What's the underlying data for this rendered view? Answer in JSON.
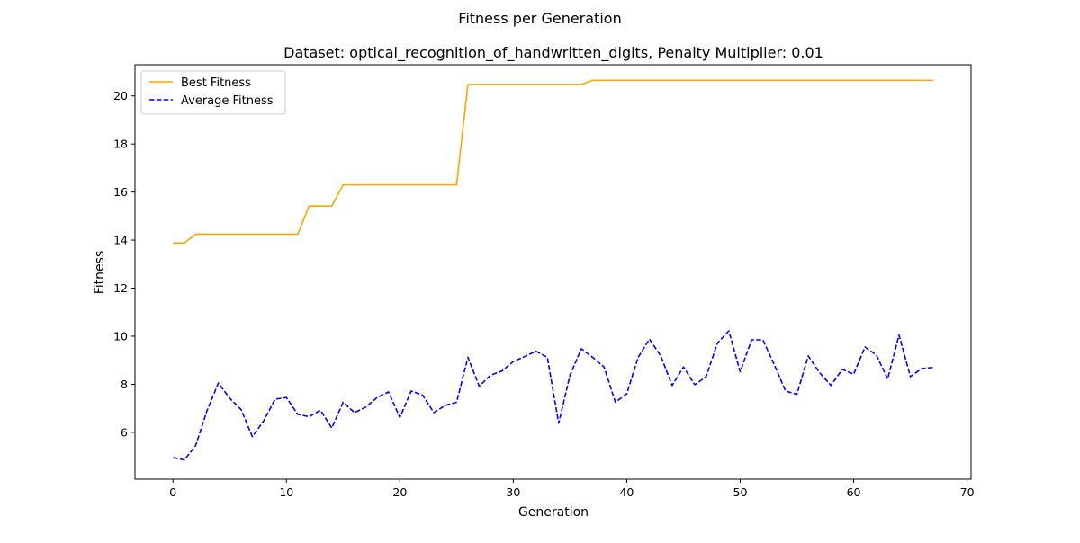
{
  "chart_data": {
    "type": "line",
    "suptitle": "Fitness per Generation",
    "title": "Dataset: optical_recognition_of_handwritten_digits, Penalty Multiplier: 0.01",
    "xlabel": "Generation",
    "ylabel": "Fitness",
    "xlim": [
      -3.35,
      70.35
    ],
    "ylim": [
      4.05,
      21.3
    ],
    "xticks": [
      0,
      10,
      20,
      30,
      40,
      50,
      60,
      70
    ],
    "yticks": [
      6,
      8,
      10,
      12,
      14,
      16,
      18,
      20
    ],
    "grid": false,
    "legend_position": "top-left",
    "series": [
      {
        "name": "Best Fitness",
        "color": "#ffa500",
        "style": "solid",
        "x": [
          0,
          1,
          2,
          3,
          4,
          5,
          6,
          7,
          8,
          9,
          10,
          11,
          12,
          13,
          14,
          15,
          16,
          17,
          18,
          19,
          20,
          21,
          22,
          23,
          24,
          25,
          26,
          27,
          28,
          29,
          30,
          31,
          32,
          33,
          34,
          35,
          36,
          37,
          38,
          39,
          40,
          41,
          42,
          43,
          44,
          45,
          46,
          47,
          48,
          49,
          50,
          51,
          52,
          53,
          54,
          55,
          56,
          57,
          58,
          59,
          60,
          61,
          62,
          63,
          64,
          65,
          66,
          67
        ],
        "y": [
          13.88,
          13.88,
          14.25,
          14.25,
          14.25,
          14.25,
          14.25,
          14.25,
          14.25,
          14.25,
          14.25,
          14.25,
          15.42,
          15.42,
          15.42,
          16.3,
          16.3,
          16.3,
          16.3,
          16.3,
          16.3,
          16.3,
          16.3,
          16.3,
          16.3,
          16.3,
          20.48,
          20.48,
          20.48,
          20.48,
          20.48,
          20.48,
          20.48,
          20.48,
          20.48,
          20.48,
          20.48,
          20.65,
          20.65,
          20.65,
          20.65,
          20.65,
          20.65,
          20.65,
          20.65,
          20.65,
          20.65,
          20.65,
          20.65,
          20.65,
          20.65,
          20.65,
          20.65,
          20.65,
          20.65,
          20.65,
          20.65,
          20.65,
          20.65,
          20.65,
          20.65,
          20.65,
          20.65,
          20.65,
          20.65,
          20.65,
          20.65,
          20.65
        ]
      },
      {
        "name": "Average Fitness",
        "color": "#0000ff",
        "style": "dashed",
        "x": [
          0,
          1,
          2,
          3,
          4,
          5,
          6,
          7,
          8,
          9,
          10,
          11,
          12,
          13,
          14,
          15,
          16,
          17,
          18,
          19,
          20,
          21,
          22,
          23,
          24,
          25,
          26,
          27,
          28,
          29,
          30,
          31,
          32,
          33,
          34,
          35,
          36,
          37,
          38,
          39,
          40,
          41,
          42,
          43,
          44,
          45,
          46,
          47,
          48,
          49,
          50,
          51,
          52,
          53,
          54,
          55,
          56,
          57,
          58,
          59,
          60,
          61,
          62,
          63,
          64,
          65,
          66,
          67
        ],
        "y": [
          4.95,
          4.85,
          5.45,
          6.9,
          8.05,
          7.42,
          6.95,
          5.82,
          6.48,
          7.38,
          7.45,
          6.75,
          6.65,
          6.92,
          6.18,
          7.25,
          6.82,
          7.05,
          7.45,
          7.68,
          6.62,
          7.72,
          7.55,
          6.82,
          7.12,
          7.25,
          9.12,
          7.92,
          8.38,
          8.55,
          8.95,
          9.15,
          9.38,
          9.12,
          6.38,
          8.38,
          9.48,
          9.12,
          8.72,
          7.25,
          7.6,
          9.12,
          9.88,
          9.18,
          7.95,
          8.72,
          7.98,
          8.32,
          9.72,
          10.22,
          8.52,
          9.85,
          9.85,
          8.82,
          7.72,
          7.58,
          9.18,
          8.48,
          7.95,
          8.62,
          8.42,
          9.55,
          9.22,
          8.22,
          10.05,
          8.32,
          8.65,
          8.7
        ]
      }
    ]
  }
}
